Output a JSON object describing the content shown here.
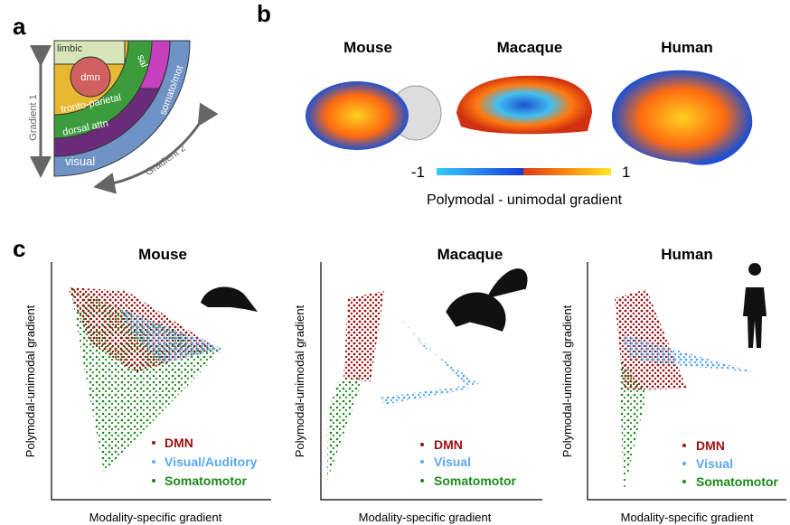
{
  "panels": {
    "a": {
      "label": "a",
      "regions": {
        "limbic": "limbic",
        "dmn": "dmn",
        "sal": "sal",
        "fronto_parietal": "fronto-parietal",
        "somato_mot": "somato/mot",
        "dorsal_attn": "dorsal attn",
        "visual": "visual"
      },
      "gradient_1": "Gradient 1",
      "gradient_2": "Gradient 2"
    },
    "b": {
      "label": "b",
      "species": [
        "Mouse",
        "Macaque",
        "Human"
      ],
      "colorbar": {
        "min": -1,
        "max": 1,
        "label": "Polymodal - unimodal gradient"
      }
    },
    "c": {
      "label": "c",
      "plots": [
        {
          "title": "Mouse",
          "y_label": "Polymodal-unimodal gradient",
          "x_label": "Modality-specific gradient",
          "legend": [
            "DMN",
            "Visual/Auditory",
            "Somatomotor"
          ]
        },
        {
          "title": "Macaque",
          "y_label": "Polymodal-unimodal gradient",
          "x_label": "Modality-specific gradient",
          "legend": [
            "DMN",
            "Visual",
            "Somatomotor"
          ]
        },
        {
          "title": "Human",
          "y_label": "Polymodal-unimodal gradient",
          "x_label": "Modality-specific gradient",
          "legend": [
            "DMN",
            "Visual",
            "Somatomotor"
          ]
        }
      ]
    }
  }
}
